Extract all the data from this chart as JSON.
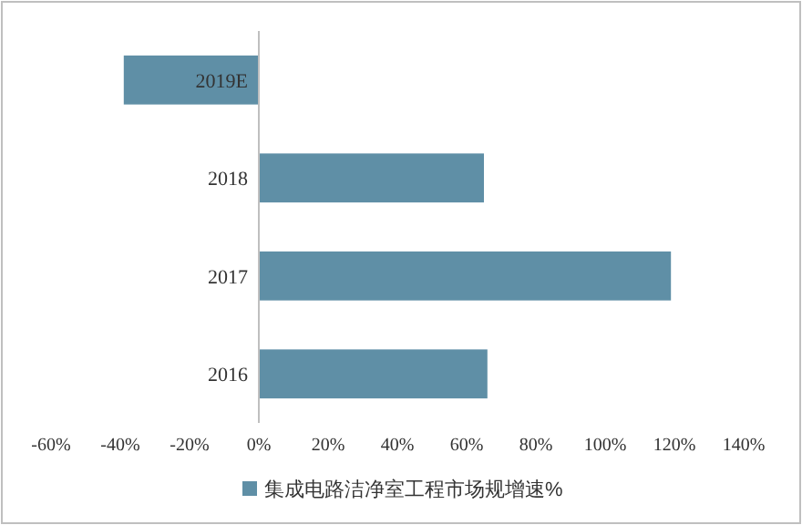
{
  "chart_data": {
    "type": "bar",
    "orientation": "horizontal",
    "categories": [
      "2019E",
      "2018",
      "2017",
      "2016"
    ],
    "series": [
      {
        "name": "集成电路洁净室工程市场规增速%",
        "color": "#5f8fa6",
        "values": [
          -39,
          65,
          119,
          66
        ]
      }
    ],
    "xlim": [
      -60,
      140
    ],
    "xticks": [
      {
        "value": -60,
        "label": "-60%"
      },
      {
        "value": -40,
        "label": "-40%"
      },
      {
        "value": -20,
        "label": "-20%"
      },
      {
        "value": 0,
        "label": "0%"
      },
      {
        "value": 20,
        "label": "20%"
      },
      {
        "value": 40,
        "label": "40%"
      },
      {
        "value": 60,
        "label": "60%"
      },
      {
        "value": 80,
        "label": "80%"
      },
      {
        "value": 100,
        "label": "100%"
      },
      {
        "value": 120,
        "label": "120%"
      },
      {
        "value": 140,
        "label": "140%"
      }
    ],
    "grid": false,
    "legend": "bottom"
  }
}
